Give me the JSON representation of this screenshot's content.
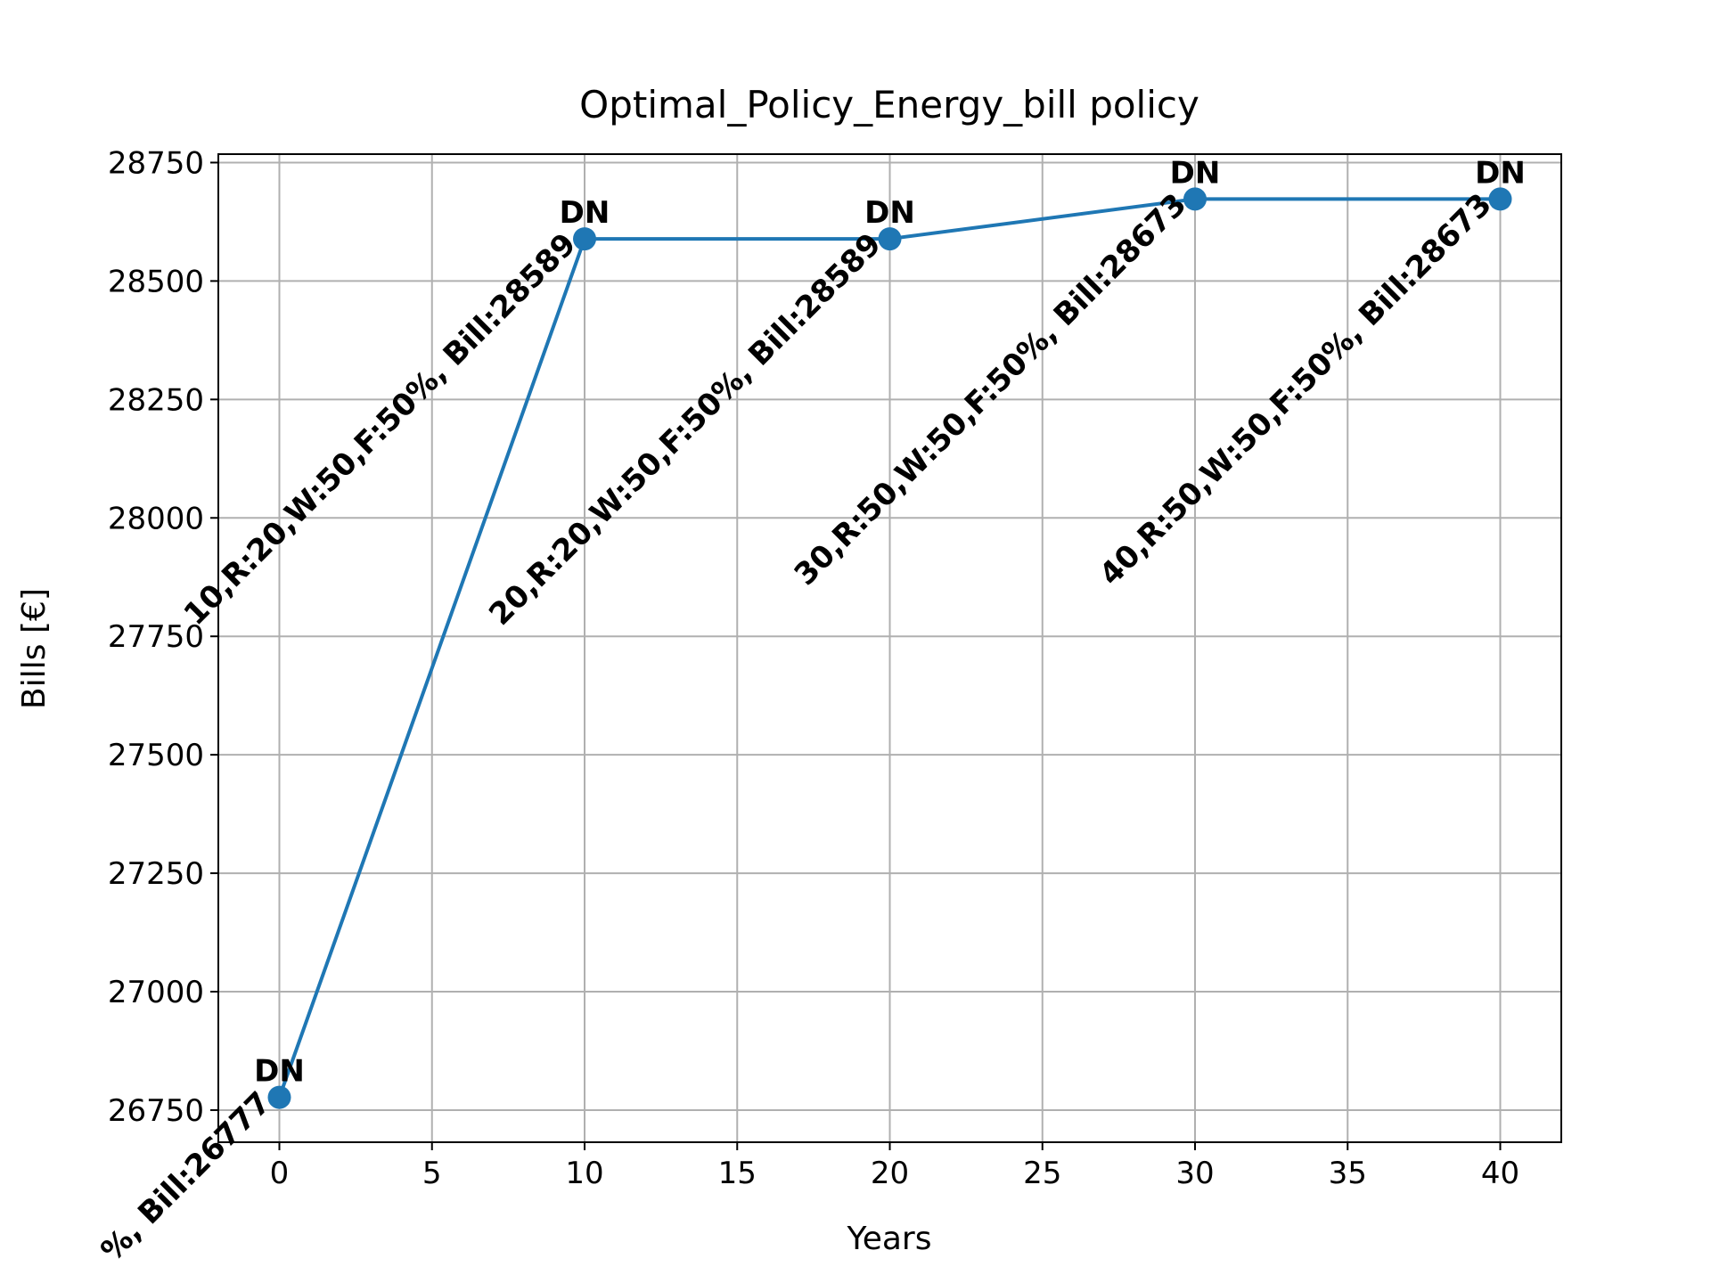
{
  "chart_data": {
    "type": "line",
    "title": "Optimal_Policy_Energy_bill policy",
    "x_label": "Years",
    "y_label": "Bills [€]",
    "x": [
      0,
      10,
      20,
      30,
      40
    ],
    "series": [
      {
        "name": "Bill",
        "color": "#1f77b4",
        "values": [
          26777,
          28589,
          28589,
          28673,
          28673
        ]
      }
    ],
    "point_labels": [
      "DN",
      "DN",
      "DN",
      "DN",
      "DN"
    ],
    "annotations": [
      "%, Bill:26777",
      "10,R:20,W:50,F:50%, Bill:28589",
      "20,R:20,W:50,F:50%, Bill:28589",
      "30,R:50,W:50,F:50%, Bill:28673",
      "40,R:50,W:50,F:50%, Bill:28673"
    ],
    "xlim": [
      -2,
      42
    ],
    "ylim": [
      26682.2,
      28767.8
    ],
    "xticks": [
      0,
      5,
      10,
      15,
      20,
      25,
      30,
      35,
      40
    ],
    "yticks": [
      26750,
      27000,
      27250,
      27500,
      27750,
      28000,
      28250,
      28500,
      28750
    ],
    "grid": true
  }
}
